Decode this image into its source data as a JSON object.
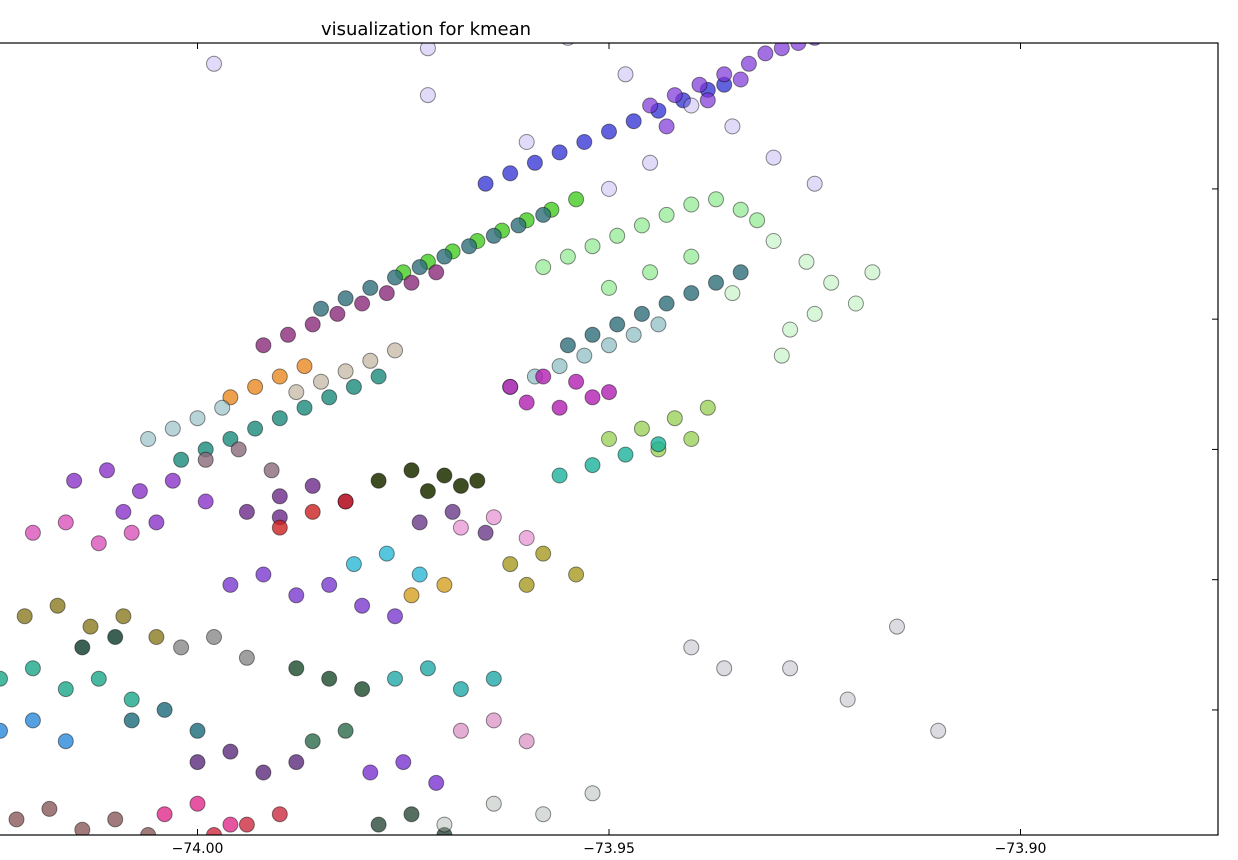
{
  "chart_data": {
    "type": "scatter",
    "title": "visualization for kmean",
    "xlabel": "",
    "ylabel": "",
    "xlim": [
      -74.024,
      -73.876
    ],
    "ylim": [
      40.676,
      40.828
    ],
    "x_ticks": [
      -74.0,
      -73.95,
      -73.9
    ],
    "x_tick_labels": [
      "−74.00",
      "−73.95",
      "−73.90"
    ],
    "y_ticks": [
      40.7,
      40.725,
      40.75,
      40.775,
      40.8
    ],
    "grid": false,
    "legend": "none",
    "marker_alpha": 0.3,
    "series": [
      {
        "color": "#3b3bd6",
        "alpha": 0.8,
        "x": [
          -73.965,
          -73.962,
          -73.959,
          -73.956,
          -73.953,
          -73.95,
          -73.947,
          -73.944,
          -73.941,
          -73.938,
          -73.936
        ],
        "y": [
          40.801,
          40.803,
          40.805,
          40.807,
          40.809,
          40.811,
          40.813,
          40.815,
          40.817,
          40.819,
          40.82
        ]
      },
      {
        "color": "#7a33d6",
        "alpha": 0.7,
        "x": [
          -73.945,
          -73.942,
          -73.939,
          -73.936,
          -73.933,
          -73.931,
          -73.929,
          -73.927,
          -73.925,
          -73.943,
          -73.938,
          -73.934
        ],
        "y": [
          40.816,
          40.818,
          40.82,
          40.822,
          40.824,
          40.826,
          40.827,
          40.828,
          40.829,
          40.812,
          40.817,
          40.821
        ]
      },
      {
        "color": "#a899ee",
        "alpha": 0.35,
        "x": [
          -73.972,
          -73.955,
          -73.948,
          -73.94,
          -73.935,
          -73.93,
          -73.925,
          -73.998,
          -73.972,
          -73.945,
          -73.95,
          -73.96
        ],
        "y": [
          40.827,
          40.829,
          40.822,
          40.816,
          40.812,
          40.806,
          40.801,
          40.824,
          40.818,
          40.805,
          40.8,
          40.809
        ]
      },
      {
        "color": "#44cc22",
        "alpha": 0.8,
        "x": [
          -73.975,
          -73.972,
          -73.969,
          -73.966,
          -73.963,
          -73.96,
          -73.957,
          -73.954
        ],
        "y": [
          40.784,
          40.786,
          40.788,
          40.79,
          40.792,
          40.794,
          40.796,
          40.798
        ]
      },
      {
        "color": "#5fe05f",
        "alpha": 0.5,
        "x": [
          -73.958,
          -73.955,
          -73.952,
          -73.949,
          -73.946,
          -73.943,
          -73.94,
          -73.937,
          -73.934,
          -73.932,
          -73.95,
          -73.945,
          -73.94
        ],
        "y": [
          40.785,
          40.787,
          40.789,
          40.791,
          40.793,
          40.795,
          40.797,
          40.798,
          40.796,
          40.794,
          40.781,
          40.784,
          40.787
        ]
      },
      {
        "color": "#8ee88e",
        "alpha": 0.35,
        "x": [
          -73.93,
          -73.926,
          -73.923,
          -73.92,
          -73.925,
          -73.918,
          -73.928,
          -73.935,
          -73.929
        ],
        "y": [
          40.79,
          40.786,
          40.782,
          40.778,
          40.776,
          40.784,
          40.773,
          40.78,
          40.768
        ]
      },
      {
        "color": "#2f6e7a",
        "alpha": 0.8,
        "x": [
          -73.985,
          -73.982,
          -73.979,
          -73.976,
          -73.973,
          -73.97,
          -73.967,
          -73.964,
          -73.961,
          -73.958,
          -73.955,
          -73.952,
          -73.949,
          -73.946,
          -73.943,
          -73.94,
          -73.937,
          -73.934
        ],
        "y": [
          40.777,
          40.779,
          40.781,
          40.783,
          40.785,
          40.787,
          40.789,
          40.791,
          40.793,
          40.795,
          40.77,
          40.772,
          40.774,
          40.776,
          40.778,
          40.78,
          40.782,
          40.784
        ]
      },
      {
        "color": "#5aa0a8",
        "alpha": 0.5,
        "x": [
          -73.962,
          -73.959,
          -73.956,
          -73.953,
          -73.95,
          -73.947,
          -73.944
        ],
        "y": [
          40.762,
          40.764,
          40.766,
          40.768,
          40.77,
          40.772,
          40.774
        ]
      },
      {
        "color": "#8a2a7a",
        "alpha": 0.8,
        "x": [
          -73.992,
          -73.989,
          -73.986,
          -73.983,
          -73.98,
          -73.977,
          -73.974,
          -73.971
        ],
        "y": [
          40.77,
          40.772,
          40.774,
          40.776,
          40.778,
          40.78,
          40.782,
          40.784
        ]
      },
      {
        "color": "#e88a22",
        "alpha": 0.8,
        "x": [
          -73.996,
          -73.993,
          -73.99,
          -73.987
        ],
        "y": [
          40.76,
          40.762,
          40.764,
          40.766
        ]
      },
      {
        "color": "#c0b3a0",
        "alpha": 0.7,
        "x": [
          -73.988,
          -73.985,
          -73.982,
          -73.979,
          -73.976
        ],
        "y": [
          40.761,
          40.763,
          40.765,
          40.767,
          40.769
        ]
      },
      {
        "color": "#1a8a7a",
        "alpha": 0.8,
        "x": [
          -74.002,
          -73.999,
          -73.996,
          -73.993,
          -73.99,
          -73.987,
          -73.984,
          -73.981,
          -73.978
        ],
        "y": [
          40.748,
          40.75,
          40.752,
          40.754,
          40.756,
          40.758,
          40.76,
          40.762,
          40.764
        ]
      },
      {
        "color": "#8ab8c0",
        "alpha": 0.6,
        "x": [
          -74.006,
          -74.003,
          -74.0,
          -73.997
        ],
        "y": [
          40.752,
          40.754,
          40.756,
          40.758
        ]
      },
      {
        "color": "#b21fb2",
        "alpha": 0.8,
        "x": [
          -73.962,
          -73.958,
          -73.954,
          -73.95,
          -73.96,
          -73.956,
          -73.952
        ],
        "y": [
          40.762,
          40.764,
          40.763,
          40.761,
          40.759,
          40.758,
          40.76
        ]
      },
      {
        "color": "#8fcc44",
        "alpha": 0.7,
        "x": [
          -73.95,
          -73.946,
          -73.942,
          -73.938,
          -73.944,
          -73.94
        ],
        "y": [
          40.752,
          40.754,
          40.756,
          40.758,
          40.75,
          40.752
        ]
      },
      {
        "color": "#1ab39a",
        "alpha": 0.8,
        "x": [
          -73.956,
          -73.952,
          -73.948,
          -73.944
        ],
        "y": [
          40.745,
          40.747,
          40.749,
          40.751
        ]
      },
      {
        "color": "#2a3a0a",
        "alpha": 0.9,
        "x": [
          -73.978,
          -73.974,
          -73.97,
          -73.966,
          -73.972,
          -73.968
        ],
        "y": [
          40.744,
          40.746,
          40.745,
          40.744,
          40.742,
          40.743
        ]
      },
      {
        "color": "#6b2a8a",
        "alpha": 0.8,
        "x": [
          -73.99,
          -73.986,
          -73.982,
          -73.994,
          -73.99
        ],
        "y": [
          40.741,
          40.743,
          40.74,
          40.738,
          40.737
        ]
      },
      {
        "color": "#8a33c8",
        "alpha": 0.8,
        "x": [
          -74.015,
          -74.011,
          -74.007,
          -74.003,
          -73.999,
          -74.009,
          -74.005
        ],
        "y": [
          40.744,
          40.746,
          40.742,
          40.744,
          40.74,
          40.738,
          40.736
        ]
      },
      {
        "color": "#d43ab0",
        "alpha": 0.7,
        "x": [
          -74.02,
          -74.016,
          -74.012,
          -74.008
        ],
        "y": [
          40.734,
          40.736,
          40.732,
          40.734
        ]
      },
      {
        "color": "#8a6a7a",
        "alpha": 0.8,
        "x": [
          -73.999,
          -73.995,
          -73.991
        ],
        "y": [
          40.748,
          40.75,
          40.746
        ]
      },
      {
        "color": "#cc2020",
        "alpha": 0.8,
        "x": [
          -73.986,
          -73.982,
          -73.99
        ],
        "y": [
          40.738,
          40.74,
          40.735
        ]
      },
      {
        "color": "#6a3a8a",
        "alpha": 0.8,
        "x": [
          -73.973,
          -73.969,
          -73.965
        ],
        "y": [
          40.736,
          40.738,
          40.734
        ]
      },
      {
        "color": "#2ab8d4",
        "alpha": 0.8,
        "x": [
          -73.981,
          -73.977,
          -73.973
        ],
        "y": [
          40.728,
          40.73,
          40.726
        ]
      },
      {
        "color": "#d4a020",
        "alpha": 0.8,
        "x": [
          -73.974,
          -73.97
        ],
        "y": [
          40.722,
          40.724
        ]
      },
      {
        "color": "#a89a20",
        "alpha": 0.8,
        "x": [
          -73.962,
          -73.958,
          -73.954,
          -73.96
        ],
        "y": [
          40.728,
          40.73,
          40.726,
          40.724
        ]
      },
      {
        "color": "#e07ac8",
        "alpha": 0.6,
        "x": [
          -73.968,
          -73.964,
          -73.96
        ],
        "y": [
          40.735,
          40.737,
          40.733
        ]
      },
      {
        "color": "#7a3ad0",
        "alpha": 0.8,
        "x": [
          -73.996,
          -73.992,
          -73.988,
          -73.984,
          -73.98,
          -73.976
        ],
        "y": [
          40.724,
          40.726,
          40.722,
          40.724,
          40.72,
          40.718
        ]
      },
      {
        "color": "#8a7a20",
        "alpha": 0.8,
        "x": [
          -74.021,
          -74.017,
          -74.013,
          -74.009,
          -74.005
        ],
        "y": [
          40.718,
          40.72,
          40.716,
          40.718,
          40.714
        ]
      },
      {
        "color": "#0a3a2a",
        "alpha": 0.8,
        "x": [
          -74.014,
          -74.01
        ],
        "y": [
          40.712,
          40.714
        ]
      },
      {
        "color": "#8a888a",
        "alpha": 0.8,
        "x": [
          -74.002,
          -73.998,
          -73.994
        ],
        "y": [
          40.712,
          40.714,
          40.71
        ]
      },
      {
        "color": "#1a4a2a",
        "alpha": 0.8,
        "x": [
          -73.988,
          -73.984,
          -73.98
        ],
        "y": [
          40.708,
          40.706,
          40.704
        ]
      },
      {
        "color": "#22a8a8",
        "alpha": 0.8,
        "x": [
          -73.976,
          -73.972,
          -73.968,
          -73.964
        ],
        "y": [
          40.706,
          40.708,
          40.704,
          40.706
        ]
      },
      {
        "color": "#1aa888",
        "alpha": 0.8,
        "x": [
          -74.024,
          -74.02,
          -74.016,
          -74.012,
          -74.008
        ],
        "y": [
          40.706,
          40.708,
          40.704,
          40.706,
          40.702
        ]
      },
      {
        "color": "#2a88d8",
        "alpha": 0.8,
        "x": [
          -74.024,
          -74.02,
          -74.016
        ],
        "y": [
          40.696,
          40.698,
          40.694
        ]
      },
      {
        "color": "#1a6a7a",
        "alpha": 0.8,
        "x": [
          -74.008,
          -74.004,
          -74.0
        ],
        "y": [
          40.698,
          40.7,
          40.696
        ]
      },
      {
        "color": "#5a2a7a",
        "alpha": 0.8,
        "x": [
          -74.0,
          -73.996,
          -73.992,
          -73.988
        ],
        "y": [
          40.69,
          40.692,
          40.688,
          40.69
        ]
      },
      {
        "color": "#2a6a4a",
        "alpha": 0.8,
        "x": [
          -73.986,
          -73.982
        ],
        "y": [
          40.694,
          40.696
        ]
      },
      {
        "color": "#7a33d0",
        "alpha": 0.8,
        "x": [
          -73.979,
          -73.975,
          -73.971
        ],
        "y": [
          40.688,
          40.69,
          40.686
        ]
      },
      {
        "color": "#d88ac0",
        "alpha": 0.7,
        "x": [
          -73.968,
          -73.964,
          -73.96
        ],
        "y": [
          40.696,
          40.698,
          40.694
        ]
      },
      {
        "color": "#e02a8a",
        "alpha": 0.8,
        "x": [
          -74.004,
          -74.0,
          -73.996
        ],
        "y": [
          40.68,
          40.682,
          40.678
        ]
      },
      {
        "color": "#8a5a5a",
        "alpha": 0.8,
        "x": [
          -74.022,
          -74.018,
          -74.014,
          -74.01,
          -74.006
        ],
        "y": [
          40.679,
          40.681,
          40.677,
          40.679,
          40.676
        ]
      },
      {
        "color": "#cc2a40",
        "alpha": 0.8,
        "x": [
          -73.998,
          -73.994,
          -73.99
        ],
        "y": [
          40.676,
          40.678,
          40.68
        ]
      },
      {
        "color": "#2a4a3a",
        "alpha": 0.8,
        "x": [
          -73.978,
          -73.974,
          -73.97
        ],
        "y": [
          40.678,
          40.68,
          40.676
        ]
      },
      {
        "color": "#9aa8a0",
        "alpha": 0.4,
        "x": [
          -73.97,
          -73.964,
          -73.958,
          -73.952
        ],
        "y": [
          40.678,
          40.682,
          40.68,
          40.684
        ]
      },
      {
        "color": "#9898aa",
        "alpha": 0.35,
        "x": [
          -73.94,
          -73.936,
          -73.928,
          -73.921,
          -73.915,
          -73.91
        ],
        "y": [
          40.712,
          40.708,
          40.708,
          40.702,
          40.716,
          40.696
        ]
      }
    ]
  }
}
